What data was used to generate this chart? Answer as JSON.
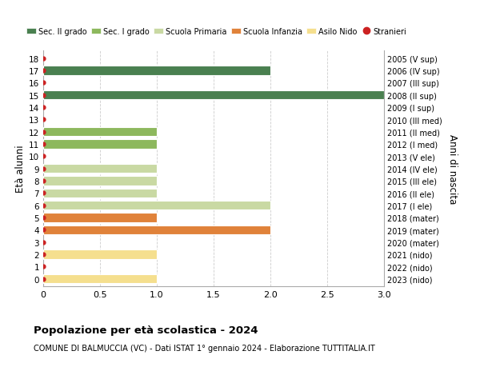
{
  "ages": [
    0,
    1,
    2,
    3,
    4,
    5,
    6,
    7,
    8,
    9,
    10,
    11,
    12,
    13,
    14,
    15,
    16,
    17,
    18
  ],
  "right_labels": [
    "2023 (nido)",
    "2022 (nido)",
    "2021 (nido)",
    "2020 (mater)",
    "2019 (mater)",
    "2018 (mater)",
    "2017 (I ele)",
    "2016 (II ele)",
    "2015 (III ele)",
    "2014 (IV ele)",
    "2013 (V ele)",
    "2012 (I med)",
    "2011 (II med)",
    "2010 (III med)",
    "2009 (I sup)",
    "2008 (II sup)",
    "2007 (III sup)",
    "2006 (IV sup)",
    "2005 (V sup)"
  ],
  "bar_data": [
    {
      "age": 0,
      "value": 1,
      "color": "#f5df8e",
      "category": "Asilo Nido"
    },
    {
      "age": 2,
      "value": 1,
      "color": "#f5df8e",
      "category": "Asilo Nido"
    },
    {
      "age": 4,
      "value": 2,
      "color": "#e0823a",
      "category": "Scuola Infanzia"
    },
    {
      "age": 5,
      "value": 1,
      "color": "#e0823a",
      "category": "Scuola Infanzia"
    },
    {
      "age": 6,
      "value": 2,
      "color": "#c9d9a3",
      "category": "Scuola Primaria"
    },
    {
      "age": 7,
      "value": 1,
      "color": "#c9d9a3",
      "category": "Scuola Primaria"
    },
    {
      "age": 8,
      "value": 1,
      "color": "#c9d9a3",
      "category": "Scuola Primaria"
    },
    {
      "age": 9,
      "value": 1,
      "color": "#c9d9a3",
      "category": "Scuola Primaria"
    },
    {
      "age": 11,
      "value": 1,
      "color": "#8db85d",
      "category": "Sec. I grado"
    },
    {
      "age": 12,
      "value": 1,
      "color": "#8db85d",
      "category": "Sec. I grado"
    },
    {
      "age": 15,
      "value": 3,
      "color": "#4a8050",
      "category": "Sec. II grado"
    },
    {
      "age": 17,
      "value": 2,
      "color": "#4a8050",
      "category": "Sec. II grado"
    }
  ],
  "stranieri_ages": [
    0,
    1,
    2,
    3,
    4,
    5,
    6,
    7,
    8,
    9,
    10,
    11,
    12,
    13,
    14,
    15,
    16,
    17,
    18
  ],
  "stranieri_color": "#cc2222",
  "xlim": [
    0,
    3.0
  ],
  "xticks": [
    0,
    0.5,
    1.0,
    1.5,
    2.0,
    2.5,
    3.0
  ],
  "xtick_labels": [
    "0",
    "0.5",
    "1.0",
    "1.5",
    "2.0",
    "2.5",
    "3.0"
  ],
  "ylabel_left": "Età alunni",
  "ylabel_right": "Anni di nascita",
  "title": "Popolazione per età scolastica - 2024",
  "subtitle": "COMUNE DI BALMUCCIA (VC) - Dati ISTAT 1° gennaio 2024 - Elaborazione TUTTITALIA.IT",
  "legend_items": [
    {
      "label": "Sec. II grado",
      "color": "#4a8050",
      "type": "patch"
    },
    {
      "label": "Sec. I grado",
      "color": "#8db85d",
      "type": "patch"
    },
    {
      "label": "Scuola Primaria",
      "color": "#c9d9a3",
      "type": "patch"
    },
    {
      "label": "Scuola Infanzia",
      "color": "#e0823a",
      "type": "patch"
    },
    {
      "label": "Asilo Nido",
      "color": "#f5df8e",
      "type": "patch"
    },
    {
      "label": "Stranieri",
      "color": "#cc2222",
      "type": "dot"
    }
  ],
  "bg_color": "#ffffff",
  "grid_color": "#cccccc",
  "bar_height": 0.75,
  "fig_width": 6.0,
  "fig_height": 4.6,
  "dpi": 100
}
